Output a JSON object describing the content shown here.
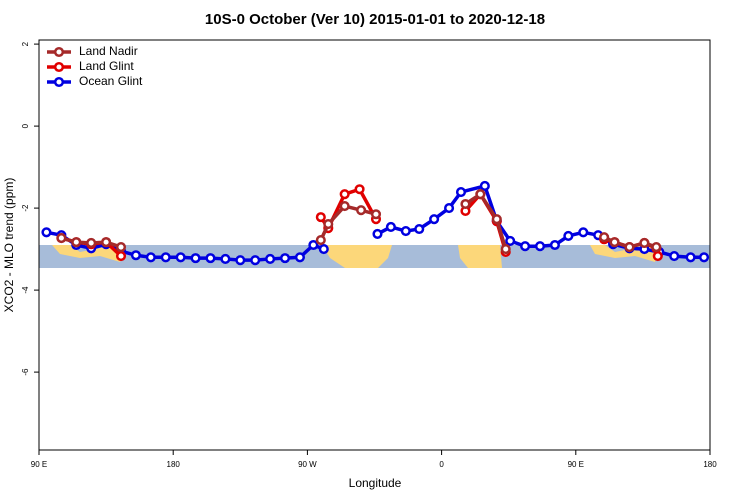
{
  "chart_data": {
    "type": "line",
    "title": "10S-0 October (Ver 10)   2015-01-01 to 2020-12-18",
    "x_label": "Longitude",
    "y_label": "XCO2 - MLO trend (ppm)",
    "xlim": [
      90,
      540
    ],
    "xticks": [
      {
        "value": 90,
        "label": "90 E"
      },
      {
        "value": 180,
        "label": "180"
      },
      {
        "value": 270,
        "label": "90 W"
      },
      {
        "value": 360,
        "label": "0"
      },
      {
        "value": 450,
        "label": "90 E"
      },
      {
        "value": 540,
        "label": "180"
      }
    ],
    "ylim": [
      -7.9,
      2.1
    ],
    "yticks": [
      2,
      0,
      -2,
      -4,
      -6
    ],
    "legend": "top-left",
    "series": [
      {
        "name": "Land Nadir",
        "color": "#a52a2a",
        "x": [
          105,
          115,
          125,
          135,
          145,
          155,
          279,
          284,
          295,
          306,
          316,
          345,
          376,
          386,
          397,
          403,
          430,
          469,
          476,
          486,
          496,
          504
        ],
        "values": [
          -2.73,
          -2.83,
          -2.85,
          -2.83,
          -2.95,
          null,
          -2.78,
          -2.39,
          -1.95,
          -2.05,
          -2.15,
          null,
          -1.9,
          -1.66,
          -2.27,
          -3.0,
          null,
          -2.71,
          -2.83,
          -2.95,
          -2.85,
          -2.95
        ]
      },
      {
        "name": "Land Glint",
        "color": "#e00000",
        "x": [
          105,
          115,
          125,
          135,
          145,
          155,
          279,
          284,
          295,
          305,
          316,
          345,
          376,
          386,
          397,
          403,
          430,
          469,
          476,
          486,
          496,
          504,
          505
        ],
        "values": [
          -2.73,
          -2.83,
          -2.88,
          -2.83,
          -3.17,
          null,
          -2.22,
          -2.49,
          -1.66,
          -1.54,
          -2.27,
          null,
          -2.07,
          -1.66,
          -2.32,
          -3.07,
          null,
          -2.76,
          -2.83,
          -2.95,
          -2.85,
          -2.98,
          -3.17
        ]
      },
      {
        "name": "Ocean Glint",
        "color": "#0000e0",
        "x": [
          95,
          105,
          115,
          125,
          135,
          145,
          155,
          165,
          175,
          185,
          195,
          205,
          215,
          225,
          235,
          245,
          255,
          265,
          274,
          281,
          300,
          317,
          326,
          336,
          345,
          355,
          365,
          373,
          389,
          397,
          406,
          416,
          426,
          436,
          445,
          455,
          465,
          475,
          486,
          496,
          506,
          516,
          527,
          536
        ],
        "values": [
          -2.59,
          -2.66,
          -2.9,
          -2.98,
          -2.88,
          -3.05,
          -3.15,
          -3.2,
          -3.2,
          -3.2,
          -3.22,
          -3.22,
          -3.24,
          -3.27,
          -3.27,
          -3.24,
          -3.22,
          -3.2,
          -2.9,
          -3.0,
          null,
          -2.63,
          -2.46,
          -2.56,
          -2.51,
          -2.27,
          -2.0,
          -1.61,
          -1.46,
          -2.32,
          -2.8,
          -2.93,
          -2.93,
          -2.9,
          -2.68,
          -2.59,
          -2.66,
          -2.88,
          -2.98,
          -3.0,
          -3.07,
          -3.17,
          -3.2,
          -3.2
        ]
      }
    ]
  }
}
